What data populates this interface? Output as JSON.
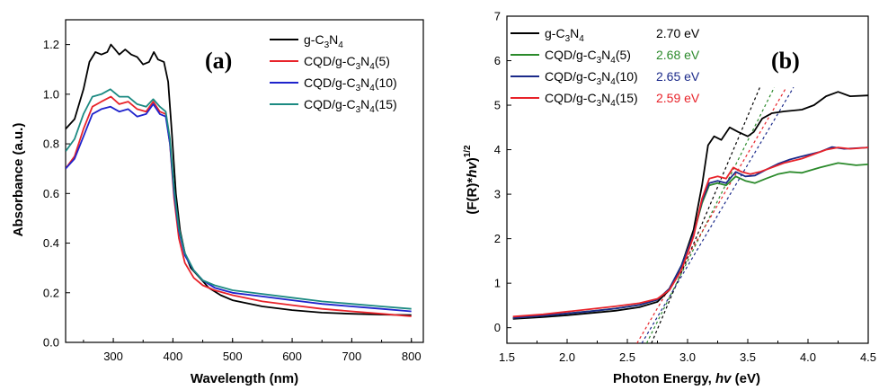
{
  "chart_data": [
    {
      "type": "line",
      "panel_label": "(a)",
      "xlabel": "Wavelength (nm)",
      "ylabel": "Absorbance (a.u.)",
      "xlim": [
        220,
        820
      ],
      "ylim": [
        0.0,
        1.3
      ],
      "xticks": [
        "300",
        "400",
        "500",
        "600",
        "700",
        "800"
      ],
      "yticks": [
        "0.0",
        "0.2",
        "0.4",
        "0.6",
        "0.8",
        "1.0",
        "1.2"
      ],
      "legend_position": "top-right",
      "series": [
        {
          "name": "g-C3N4",
          "legend": [
            "g-C",
            "3",
            "N",
            "4",
            ""
          ],
          "color": "#000000",
          "points": [
            [
              220,
              0.86
            ],
            [
              235,
              0.9
            ],
            [
              250,
              1.02
            ],
            [
              260,
              1.13
            ],
            [
              270,
              1.17
            ],
            [
              280,
              1.16
            ],
            [
              290,
              1.17
            ],
            [
              296,
              1.2
            ],
            [
              303,
              1.18
            ],
            [
              310,
              1.16
            ],
            [
              320,
              1.18
            ],
            [
              330,
              1.16
            ],
            [
              340,
              1.15
            ],
            [
              350,
              1.12
            ],
            [
              360,
              1.13
            ],
            [
              368,
              1.17
            ],
            [
              375,
              1.14
            ],
            [
              385,
              1.13
            ],
            [
              392,
              1.05
            ],
            [
              398,
              0.85
            ],
            [
              405,
              0.6
            ],
            [
              412,
              0.45
            ],
            [
              420,
              0.36
            ],
            [
              430,
              0.3
            ],
            [
              445,
              0.26
            ],
            [
              460,
              0.22
            ],
            [
              480,
              0.19
            ],
            [
              500,
              0.17
            ],
            [
              550,
              0.145
            ],
            [
              600,
              0.13
            ],
            [
              650,
              0.12
            ],
            [
              700,
              0.115
            ],
            [
              750,
              0.112
            ],
            [
              800,
              0.11
            ]
          ]
        },
        {
          "name": "CQD/g-C3N4(5)",
          "legend": [
            "CQD/g-C",
            "3",
            "N",
            "4",
            "(5)"
          ],
          "color": "#e8232a",
          "points": [
            [
              220,
              0.7
            ],
            [
              235,
              0.75
            ],
            [
              250,
              0.86
            ],
            [
              265,
              0.95
            ],
            [
              280,
              0.97
            ],
            [
              296,
              0.99
            ],
            [
              310,
              0.96
            ],
            [
              325,
              0.97
            ],
            [
              340,
              0.94
            ],
            [
              355,
              0.93
            ],
            [
              367,
              0.97
            ],
            [
              378,
              0.93
            ],
            [
              388,
              0.92
            ],
            [
              395,
              0.8
            ],
            [
              402,
              0.58
            ],
            [
              410,
              0.42
            ],
            [
              420,
              0.32
            ],
            [
              435,
              0.26
            ],
            [
              450,
              0.23
            ],
            [
              470,
              0.21
            ],
            [
              500,
              0.19
            ],
            [
              550,
              0.165
            ],
            [
              600,
              0.15
            ],
            [
              650,
              0.135
            ],
            [
              700,
              0.125
            ],
            [
              750,
              0.115
            ],
            [
              800,
              0.105
            ]
          ]
        },
        {
          "name": "CQD/g-C3N4(10)",
          "legend": [
            "CQD/g-C",
            "3",
            "N",
            "4",
            "(10)"
          ],
          "color": "#1f23cc",
          "points": [
            [
              220,
              0.7
            ],
            [
              235,
              0.74
            ],
            [
              250,
              0.83
            ],
            [
              265,
              0.92
            ],
            [
              280,
              0.94
            ],
            [
              295,
              0.95
            ],
            [
              310,
              0.93
            ],
            [
              325,
              0.94
            ],
            [
              340,
              0.91
            ],
            [
              355,
              0.92
            ],
            [
              367,
              0.96
            ],
            [
              378,
              0.92
            ],
            [
              388,
              0.91
            ],
            [
              395,
              0.8
            ],
            [
              402,
              0.6
            ],
            [
              410,
              0.45
            ],
            [
              420,
              0.35
            ],
            [
              435,
              0.29
            ],
            [
              450,
              0.25
            ],
            [
              470,
              0.22
            ],
            [
              500,
              0.2
            ],
            [
              550,
              0.185
            ],
            [
              600,
              0.17
            ],
            [
              650,
              0.155
            ],
            [
              700,
              0.145
            ],
            [
              750,
              0.135
            ],
            [
              800,
              0.125
            ]
          ]
        },
        {
          "name": "CQD/g-C3N4(15)",
          "legend": [
            "CQD/g-C",
            "3",
            "N",
            "4",
            "(15)"
          ],
          "color": "#1c8a82",
          "points": [
            [
              220,
              0.77
            ],
            [
              235,
              0.82
            ],
            [
              250,
              0.92
            ],
            [
              265,
              0.99
            ],
            [
              280,
              1.0
            ],
            [
              295,
              1.02
            ],
            [
              310,
              0.99
            ],
            [
              325,
              0.99
            ],
            [
              340,
              0.96
            ],
            [
              355,
              0.95
            ],
            [
              367,
              0.98
            ],
            [
              378,
              0.95
            ],
            [
              388,
              0.93
            ],
            [
              395,
              0.82
            ],
            [
              402,
              0.62
            ],
            [
              410,
              0.46
            ],
            [
              420,
              0.36
            ],
            [
              435,
              0.29
            ],
            [
              450,
              0.25
            ],
            [
              470,
              0.23
            ],
            [
              500,
              0.21
            ],
            [
              550,
              0.195
            ],
            [
              600,
              0.18
            ],
            [
              650,
              0.165
            ],
            [
              700,
              0.155
            ],
            [
              750,
              0.145
            ],
            [
              800,
              0.135
            ]
          ]
        }
      ]
    },
    {
      "type": "line",
      "panel_label": "(b)",
      "xlabel_prefix": "Photon Energy, ",
      "xlabel_italic": "hv",
      "xlabel_suffix": " (eV)",
      "ylabel": "(F(R)*hv)^1/2",
      "ylabel_parts": [
        "(F(R)*",
        "hv",
        ")",
        "1/2"
      ],
      "xlim": [
        1.5,
        4.5
      ],
      "ylim": [
        -0.35,
        7.0
      ],
      "xticks": [
        "1.5",
        "2.0",
        "2.5",
        "3.0",
        "3.5",
        "4.0",
        "4.5"
      ],
      "yticks": [
        "0",
        "1",
        "2",
        "3",
        "4",
        "5",
        "6",
        "7"
      ],
      "legend_position": "top-left",
      "series": [
        {
          "name": "g-C3N4",
          "legend": [
            "g-C",
            "3",
            "N",
            "4",
            ""
          ],
          "bandgap": "2.70 eV",
          "color": "#000000",
          "label_color": "#000000",
          "tangent": [
            [
              2.7,
              -0.35
            ],
            [
              3.6,
              5.4
            ]
          ],
          "points": [
            [
              1.55,
              0.2
            ],
            [
              1.8,
              0.24
            ],
            [
              2.0,
              0.28
            ],
            [
              2.2,
              0.33
            ],
            [
              2.4,
              0.38
            ],
            [
              2.6,
              0.46
            ],
            [
              2.75,
              0.58
            ],
            [
              2.85,
              0.85
            ],
            [
              2.95,
              1.4
            ],
            [
              3.05,
              2.2
            ],
            [
              3.12,
              3.2
            ],
            [
              3.17,
              4.1
            ],
            [
              3.22,
              4.3
            ],
            [
              3.28,
              4.22
            ],
            [
              3.35,
              4.5
            ],
            [
              3.42,
              4.4
            ],
            [
              3.5,
              4.3
            ],
            [
              3.55,
              4.4
            ],
            [
              3.62,
              4.7
            ],
            [
              3.7,
              4.82
            ],
            [
              3.8,
              4.86
            ],
            [
              3.95,
              4.9
            ],
            [
              4.05,
              5.0
            ],
            [
              4.15,
              5.2
            ],
            [
              4.25,
              5.3
            ],
            [
              4.35,
              5.2
            ],
            [
              4.5,
              5.22
            ]
          ]
        },
        {
          "name": "CQD/g-C3N4(5)",
          "legend": [
            "CQD/g-C",
            "3",
            "N",
            "4",
            "(5)"
          ],
          "bandgap": "2.68 eV",
          "color": "#2b8a2b",
          "label_color": "#2b8a2b",
          "tangent": [
            [
              2.66,
              -0.35
            ],
            [
              3.72,
              5.4
            ]
          ],
          "points": [
            [
              1.55,
              0.22
            ],
            [
              1.8,
              0.27
            ],
            [
              2.0,
              0.32
            ],
            [
              2.2,
              0.37
            ],
            [
              2.4,
              0.43
            ],
            [
              2.6,
              0.51
            ],
            [
              2.75,
              0.63
            ],
            [
              2.85,
              0.88
            ],
            [
              2.95,
              1.4
            ],
            [
              3.05,
              2.1
            ],
            [
              3.12,
              2.8
            ],
            [
              3.18,
              3.2
            ],
            [
              3.25,
              3.25
            ],
            [
              3.32,
              3.2
            ],
            [
              3.4,
              3.4
            ],
            [
              3.48,
              3.3
            ],
            [
              3.56,
              3.25
            ],
            [
              3.65,
              3.35
            ],
            [
              3.75,
              3.45
            ],
            [
              3.85,
              3.5
            ],
            [
              3.95,
              3.48
            ],
            [
              4.1,
              3.6
            ],
            [
              4.25,
              3.7
            ],
            [
              4.4,
              3.65
            ],
            [
              4.5,
              3.67
            ]
          ]
        },
        {
          "name": "CQD/g-C3N4(10)",
          "legend": [
            "CQD/g-C",
            "3",
            "N",
            "4",
            "(10)"
          ],
          "bandgap": "2.65 eV",
          "color": "#1b2a8a",
          "label_color": "#1b2a8a",
          "tangent": [
            [
              2.62,
              -0.35
            ],
            [
              3.88,
              5.4
            ]
          ],
          "points": [
            [
              1.55,
              0.22
            ],
            [
              1.8,
              0.27
            ],
            [
              2.0,
              0.32
            ],
            [
              2.2,
              0.37
            ],
            [
              2.4,
              0.43
            ],
            [
              2.6,
              0.51
            ],
            [
              2.75,
              0.63
            ],
            [
              2.85,
              0.88
            ],
            [
              2.95,
              1.4
            ],
            [
              3.05,
              2.1
            ],
            [
              3.12,
              2.85
            ],
            [
              3.18,
              3.25
            ],
            [
              3.25,
              3.3
            ],
            [
              3.32,
              3.25
            ],
            [
              3.4,
              3.5
            ],
            [
              3.48,
              3.4
            ],
            [
              3.56,
              3.42
            ],
            [
              3.65,
              3.55
            ],
            [
              3.75,
              3.68
            ],
            [
              3.85,
              3.78
            ],
            [
              3.95,
              3.85
            ],
            [
              4.1,
              3.95
            ],
            [
              4.2,
              4.06
            ],
            [
              4.3,
              4.02
            ],
            [
              4.5,
              4.05
            ]
          ]
        },
        {
          "name": "CQD/g-C3N4(15)",
          "legend": [
            "CQD/g-C",
            "3",
            "N",
            "4",
            "(15)"
          ],
          "bandgap": "2.59 eV",
          "color": "#e8232a",
          "label_color": "#e8232a",
          "tangent": [
            [
              2.58,
              -0.35
            ],
            [
              3.82,
              5.4
            ]
          ],
          "points": [
            [
              1.55,
              0.25
            ],
            [
              1.8,
              0.3
            ],
            [
              2.0,
              0.36
            ],
            [
              2.2,
              0.42
            ],
            [
              2.4,
              0.48
            ],
            [
              2.6,
              0.55
            ],
            [
              2.75,
              0.65
            ],
            [
              2.85,
              0.85
            ],
            [
              2.95,
              1.3
            ],
            [
              3.05,
              2.05
            ],
            [
              3.12,
              2.9
            ],
            [
              3.18,
              3.35
            ],
            [
              3.25,
              3.4
            ],
            [
              3.32,
              3.35
            ],
            [
              3.38,
              3.6
            ],
            [
              3.45,
              3.5
            ],
            [
              3.52,
              3.45
            ],
            [
              3.6,
              3.5
            ],
            [
              3.7,
              3.6
            ],
            [
              3.8,
              3.7
            ],
            [
              3.95,
              3.8
            ],
            [
              4.05,
              3.9
            ],
            [
              4.15,
              4.0
            ],
            [
              4.25,
              4.05
            ],
            [
              4.35,
              4.02
            ],
            [
              4.5,
              4.05
            ]
          ]
        }
      ]
    }
  ]
}
